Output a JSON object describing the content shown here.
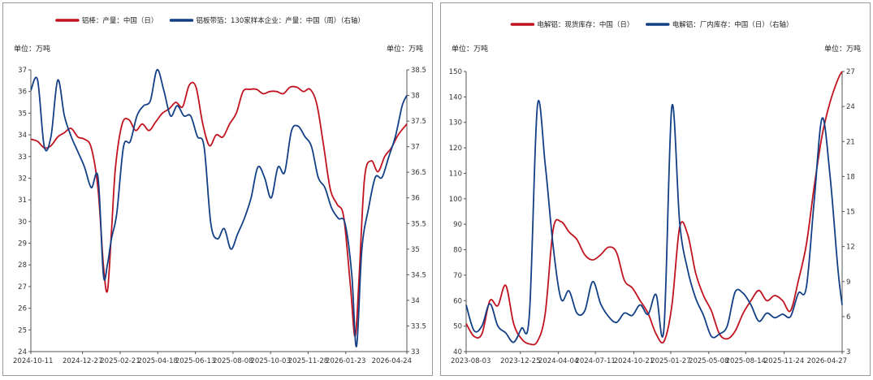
{
  "charts": [
    {
      "id": "left",
      "unit_left": "单位：万吨",
      "unit_right": "单位：万吨",
      "legend": [
        {
          "label": "铝棒：产量：中国（日）",
          "color": "#c0131f"
        },
        {
          "label": "铝板带箔：130家样本企业：产量：中国（周）（右轴）",
          "color": "#123f86"
        }
      ],
      "x_ticks": [
        "2024-10-11",
        "2024-12-27",
        "2025-02-21",
        "2025-04-18",
        "2025-06-13",
        "2025-08-08",
        "2025-10-03",
        "2025-11-28",
        "2026-01-23",
        "2026-04-24"
      ],
      "y_left_ticks": [
        "24",
        "25",
        "26",
        "27",
        "28",
        "29",
        "30",
        "31",
        "32",
        "33",
        "34",
        "35",
        "36",
        "37"
      ],
      "y_right_ticks": [
        "33",
        "33.5",
        "34",
        "34.5",
        "35",
        "35.5",
        "36",
        "36.5",
        "37",
        "37.5",
        "38",
        "38.5"
      ]
    },
    {
      "id": "right",
      "unit_left": "单位：万吨",
      "unit_right": "单位：万吨",
      "legend": [
        {
          "label": "电解铝：现货库存：中国（日）",
          "color": "#c0131f"
        },
        {
          "label": "电解铝：厂内库存：中国（日）（右轴）",
          "color": "#123f86"
        }
      ],
      "x_ticks": [
        "2023-08-03",
        "2023-12-25",
        "2024-04-04",
        "2024-07-11",
        "2024-10-21",
        "2025-01-27",
        "2025-05-08",
        "2025-08-14",
        "2025-11-24",
        "2026-04-27"
      ],
      "y_left_ticks": [
        "40",
        "50",
        "60",
        "70",
        "80",
        "90",
        "100",
        "110",
        "120",
        "130",
        "140",
        "150"
      ],
      "y_right_ticks": [
        "3",
        "6",
        "9",
        "12",
        "15",
        "18",
        "21",
        "24",
        "27"
      ]
    }
  ],
  "chart_data": [
    {
      "type": "line",
      "x_range": [
        "2024-10-11",
        "2026-04-24"
      ],
      "ylim": [
        24,
        37
      ],
      "y2lim": [
        33,
        38.5
      ],
      "series": [
        {
          "name": "铝棒：产量：中国（日）",
          "axis": "left",
          "color": "#c0131f",
          "points": [
            [
              "2024-10-11",
              33.8
            ],
            [
              "2024-10-21",
              33.7
            ],
            [
              "2024-10-31",
              33.4
            ],
            [
              "2024-11-10",
              33.5
            ],
            [
              "2024-11-20",
              33.9
            ],
            [
              "2024-11-30",
              34.1
            ],
            [
              "2024-12-10",
              34.3
            ],
            [
              "2024-12-20",
              33.9
            ],
            [
              "2024-12-30",
              33.8
            ],
            [
              "2025-01-09",
              33.4
            ],
            [
              "2025-01-19",
              31.5
            ],
            [
              "2025-01-27",
              28.0
            ],
            [
              "2025-02-02",
              26.8
            ],
            [
              "2025-02-08",
              29.5
            ],
            [
              "2025-02-14",
              32.5
            ],
            [
              "2025-02-24",
              34.5
            ],
            [
              "2025-03-06",
              34.7
            ],
            [
              "2025-03-16",
              34.2
            ],
            [
              "2025-03-26",
              34.5
            ],
            [
              "2025-04-05",
              34.2
            ],
            [
              "2025-04-15",
              34.6
            ],
            [
              "2025-04-25",
              35.0
            ],
            [
              "2025-05-05",
              35.2
            ],
            [
              "2025-05-15",
              35.5
            ],
            [
              "2025-05-25",
              35.3
            ],
            [
              "2025-06-04",
              36.3
            ],
            [
              "2025-06-14",
              36.2
            ],
            [
              "2025-06-24",
              34.5
            ],
            [
              "2025-07-04",
              33.5
            ],
            [
              "2025-07-14",
              34.0
            ],
            [
              "2025-07-24",
              33.9
            ],
            [
              "2025-08-03",
              34.5
            ],
            [
              "2025-08-13",
              35.0
            ],
            [
              "2025-08-23",
              36.0
            ],
            [
              "2025-09-02",
              36.1
            ],
            [
              "2025-09-12",
              36.1
            ],
            [
              "2025-09-22",
              35.9
            ],
            [
              "2025-10-02",
              36.0
            ],
            [
              "2025-10-12",
              36.0
            ],
            [
              "2025-10-22",
              35.9
            ],
            [
              "2025-11-01",
              36.2
            ],
            [
              "2025-11-11",
              36.2
            ],
            [
              "2025-11-21",
              36.0
            ],
            [
              "2025-12-01",
              36.1
            ],
            [
              "2025-12-11",
              35.4
            ],
            [
              "2025-12-21",
              33.5
            ],
            [
              "2025-12-31",
              31.5
            ],
            [
              "2026-01-10",
              30.8
            ],
            [
              "2026-01-20",
              30.2
            ],
            [
              "2026-01-30",
              27.0
            ],
            [
              "2026-02-06",
              24.7
            ],
            [
              "2026-02-12",
              27.5
            ],
            [
              "2026-02-20",
              32.0
            ],
            [
              "2026-03-02",
              32.8
            ],
            [
              "2026-03-12",
              32.3
            ],
            [
              "2026-03-22",
              33.0
            ],
            [
              "2026-04-01",
              33.4
            ],
            [
              "2026-04-11",
              34.0
            ],
            [
              "2026-04-24",
              34.5
            ]
          ]
        },
        {
          "name": "铝板带箔：130家样本企业：产量：中国（周）（右轴）",
          "axis": "right",
          "color": "#123f86",
          "points": [
            [
              "2024-10-11",
              38.1
            ],
            [
              "2024-10-21",
              38.3
            ],
            [
              "2024-10-31",
              37.0
            ],
            [
              "2024-11-10",
              37.2
            ],
            [
              "2024-11-20",
              38.3
            ],
            [
              "2024-11-30",
              37.6
            ],
            [
              "2024-12-10",
              37.2
            ],
            [
              "2024-12-20",
              36.9
            ],
            [
              "2024-12-30",
              36.6
            ],
            [
              "2025-01-09",
              36.2
            ],
            [
              "2025-01-19",
              36.4
            ],
            [
              "2025-01-27",
              34.5
            ],
            [
              "2025-02-02",
              34.7
            ],
            [
              "2025-02-08",
              35.2
            ],
            [
              "2025-02-16",
              35.7
            ],
            [
              "2025-02-26",
              37.0
            ],
            [
              "2025-03-08",
              37.1
            ],
            [
              "2025-03-18",
              37.6
            ],
            [
              "2025-03-28",
              37.8
            ],
            [
              "2025-04-07",
              37.9
            ],
            [
              "2025-04-17",
              38.5
            ],
            [
              "2025-04-27",
              38.1
            ],
            [
              "2025-05-07",
              37.6
            ],
            [
              "2025-05-17",
              37.8
            ],
            [
              "2025-05-27",
              37.6
            ],
            [
              "2025-06-06",
              37.6
            ],
            [
              "2025-06-16",
              37.2
            ],
            [
              "2025-06-26",
              37.0
            ],
            [
              "2025-07-06",
              35.5
            ],
            [
              "2025-07-16",
              35.2
            ],
            [
              "2025-07-26",
              35.4
            ],
            [
              "2025-08-05",
              35.0
            ],
            [
              "2025-08-15",
              35.3
            ],
            [
              "2025-08-25",
              35.6
            ],
            [
              "2025-09-04",
              36.0
            ],
            [
              "2025-09-14",
              36.6
            ],
            [
              "2025-09-24",
              36.4
            ],
            [
              "2025-10-04",
              36.0
            ],
            [
              "2025-10-14",
              36.6
            ],
            [
              "2025-10-24",
              36.5
            ],
            [
              "2025-11-03",
              37.3
            ],
            [
              "2025-11-13",
              37.4
            ],
            [
              "2025-11-23",
              37.2
            ],
            [
              "2025-12-03",
              37.0
            ],
            [
              "2025-12-13",
              36.4
            ],
            [
              "2025-12-23",
              36.2
            ],
            [
              "2026-01-02",
              35.8
            ],
            [
              "2026-01-12",
              35.6
            ],
            [
              "2026-01-22",
              35.5
            ],
            [
              "2026-02-01",
              34.5
            ],
            [
              "2026-02-08",
              33.1
            ],
            [
              "2026-02-16",
              35.0
            ],
            [
              "2026-02-26",
              35.8
            ],
            [
              "2026-03-08",
              36.4
            ],
            [
              "2026-03-18",
              36.4
            ],
            [
              "2026-03-28",
              36.8
            ],
            [
              "2026-04-07",
              37.2
            ],
            [
              "2026-04-17",
              37.8
            ],
            [
              "2026-04-24",
              38.0
            ]
          ]
        }
      ]
    },
    {
      "type": "line",
      "x_range": [
        "2023-08-03",
        "2026-04-27"
      ],
      "ylim": [
        40,
        150
      ],
      "y2lim": [
        3,
        27
      ],
      "series": [
        {
          "name": "电解铝：现货库存：中国（日）",
          "axis": "left",
          "color": "#c0131f",
          "points": [
            [
              "2023-08-03",
              51
            ],
            [
              "2023-08-24",
              46
            ],
            [
              "2023-09-14",
              47
            ],
            [
              "2023-10-05",
              60
            ],
            [
              "2023-10-26",
              58
            ],
            [
              "2023-11-16",
              66
            ],
            [
              "2023-12-07",
              51
            ],
            [
              "2023-12-28",
              45
            ],
            [
              "2024-01-18",
              43
            ],
            [
              "2024-02-08",
              44
            ],
            [
              "2024-02-29",
              55
            ],
            [
              "2024-03-21",
              88
            ],
            [
              "2024-04-11",
              91
            ],
            [
              "2024-05-02",
              87
            ],
            [
              "2024-05-23",
              84
            ],
            [
              "2024-06-13",
              78
            ],
            [
              "2024-07-04",
              76
            ],
            [
              "2024-07-25",
              78
            ],
            [
              "2024-08-15",
              81
            ],
            [
              "2024-09-05",
              79
            ],
            [
              "2024-09-26",
              68
            ],
            [
              "2024-10-17",
              65
            ],
            [
              "2024-11-07",
              60
            ],
            [
              "2024-11-28",
              55
            ],
            [
              "2024-12-19",
              47
            ],
            [
              "2025-01-09",
              44
            ],
            [
              "2025-01-30",
              58
            ],
            [
              "2025-02-20",
              89
            ],
            [
              "2025-03-13",
              86
            ],
            [
              "2025-04-03",
              71
            ],
            [
              "2025-04-24",
              62
            ],
            [
              "2025-05-15",
              56
            ],
            [
              "2025-06-05",
              47
            ],
            [
              "2025-06-26",
              45
            ],
            [
              "2025-07-17",
              48
            ],
            [
              "2025-08-07",
              55
            ],
            [
              "2025-08-28",
              60
            ],
            [
              "2025-09-18",
              64
            ],
            [
              "2025-10-09",
              60
            ],
            [
              "2025-10-30",
              62
            ],
            [
              "2025-11-20",
              60
            ],
            [
              "2025-12-11",
              56
            ],
            [
              "2026-01-01",
              68
            ],
            [
              "2026-01-22",
              82
            ],
            [
              "2026-02-12",
              105
            ],
            [
              "2026-03-05",
              125
            ],
            [
              "2026-03-26",
              138
            ],
            [
              "2026-04-16",
              147
            ],
            [
              "2026-04-27",
              150
            ]
          ]
        },
        {
          "name": "电解铝：厂内库存：中国（日）（右轴）",
          "axis": "right",
          "color": "#123f86",
          "points": [
            [
              "2023-08-03",
              7.0
            ],
            [
              "2023-08-24",
              4.8
            ],
            [
              "2023-09-14",
              5.2
            ],
            [
              "2023-10-05",
              7.1
            ],
            [
              "2023-10-26",
              5.2
            ],
            [
              "2023-11-16",
              4.6
            ],
            [
              "2023-12-07",
              3.8
            ],
            [
              "2023-12-28",
              5.0
            ],
            [
              "2024-01-18",
              6.2
            ],
            [
              "2024-02-08",
              24.0
            ],
            [
              "2024-02-29",
              19.0
            ],
            [
              "2024-03-21",
              12.0
            ],
            [
              "2024-04-11",
              7.5
            ],
            [
              "2024-05-02",
              8.2
            ],
            [
              "2024-05-23",
              6.3
            ],
            [
              "2024-06-13",
              6.5
            ],
            [
              "2024-07-04",
              9.0
            ],
            [
              "2024-07-25",
              7.1
            ],
            [
              "2024-08-15",
              6.0
            ],
            [
              "2024-09-05",
              5.5
            ],
            [
              "2024-09-26",
              6.3
            ],
            [
              "2024-10-17",
              6.1
            ],
            [
              "2024-11-07",
              7.0
            ],
            [
              "2024-11-28",
              6.2
            ],
            [
              "2024-12-19",
              7.9
            ],
            [
              "2025-01-09",
              5.0
            ],
            [
              "2025-01-30",
              24.0
            ],
            [
              "2025-02-20",
              14.0
            ],
            [
              "2025-03-13",
              10.0
            ],
            [
              "2025-04-03",
              7.6
            ],
            [
              "2025-04-24",
              6.1
            ],
            [
              "2025-05-15",
              4.3
            ],
            [
              "2025-06-05",
              4.5
            ],
            [
              "2025-06-26",
              5.2
            ],
            [
              "2025-07-17",
              8.1
            ],
            [
              "2025-08-07",
              8.0
            ],
            [
              "2025-08-28",
              7.0
            ],
            [
              "2025-09-18",
              5.6
            ],
            [
              "2025-10-09",
              6.3
            ],
            [
              "2025-10-30",
              5.9
            ],
            [
              "2025-11-20",
              6.2
            ],
            [
              "2025-12-11",
              6.0
            ],
            [
              "2026-01-01",
              8.0
            ],
            [
              "2026-01-22",
              8.5
            ],
            [
              "2026-02-12",
              16.0
            ],
            [
              "2026-03-05",
              23.0
            ],
            [
              "2026-03-26",
              18.0
            ],
            [
              "2026-04-16",
              10.0
            ],
            [
              "2026-04-27",
              7.0
            ]
          ]
        }
      ]
    }
  ]
}
